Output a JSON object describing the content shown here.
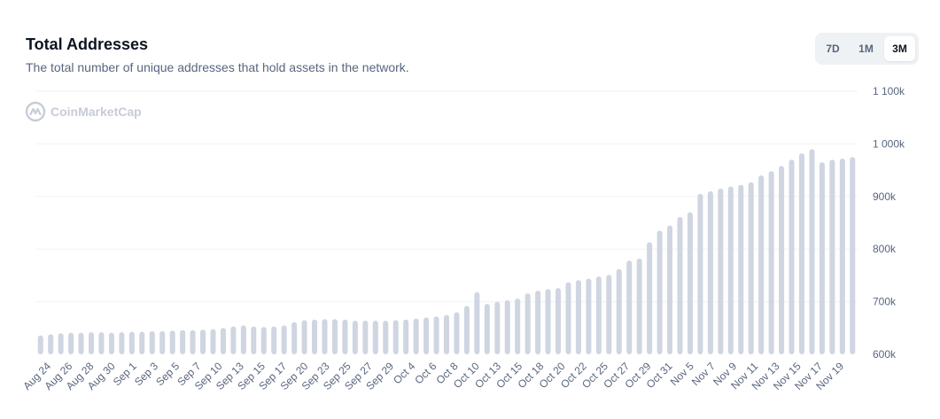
{
  "header": {
    "title": "Total Addresses",
    "subtitle": "The total number of unique addresses that hold assets in the network."
  },
  "range_buttons": [
    {
      "label": "7D",
      "active": false
    },
    {
      "label": "1M",
      "active": false
    },
    {
      "label": "3M",
      "active": true
    }
  ],
  "watermark": {
    "text": "CoinMarketCap"
  },
  "colors": {
    "bar": "#cfd5e1",
    "grid": "#eff2f5",
    "tick": "#58667e",
    "watermark": "#c7ccd6"
  },
  "chart_data": {
    "type": "bar",
    "title": "Total Addresses",
    "xlabel": "",
    "ylabel": "",
    "ylim": [
      600000,
      1100000
    ],
    "y_ticks": [
      {
        "value": 1100000,
        "label": "1 100k"
      },
      {
        "value": 1000000,
        "label": "1 000k"
      },
      {
        "value": 900000,
        "label": "900k"
      },
      {
        "value": 800000,
        "label": "800k"
      },
      {
        "value": 700000,
        "label": "700k"
      },
      {
        "value": 600000,
        "label": "600k"
      }
    ],
    "x_tick_labels": [
      "Aug 24",
      "Aug 26",
      "Aug 28",
      "Aug 30",
      "Sep 1",
      "Sep 3",
      "Sep 5",
      "Sep 7",
      "Sep 10",
      "Sep 13",
      "Sep 15",
      "Sep 17",
      "Sep 20",
      "Sep 23",
      "Sep 25",
      "Sep 27",
      "Sep 29",
      "Oct 4",
      "Oct 6",
      "Oct 8",
      "Oct 10",
      "Oct 13",
      "Oct 15",
      "Oct 18",
      "Oct 20",
      "Oct 22",
      "Oct 25",
      "Oct 27",
      "Oct 29",
      "Oct 31",
      "Nov 5",
      "Nov 7",
      "Nov 9",
      "Nov 11",
      "Nov 13",
      "Nov 15",
      "Nov 17",
      "Nov 19"
    ],
    "values": [
      636000,
      638000,
      640000,
      641000,
      641000,
      642000,
      642000,
      641000,
      642000,
      643000,
      643000,
      644000,
      644000,
      645000,
      646000,
      646000,
      647000,
      648000,
      650000,
      653000,
      655000,
      653000,
      652000,
      653000,
      655000,
      661000,
      665000,
      666000,
      667000,
      667000,
      666000,
      664000,
      664000,
      664000,
      664000,
      665000,
      666000,
      668000,
      670000,
      672000,
      675000,
      680000,
      692000,
      718000,
      696000,
      700000,
      703000,
      706000,
      716000,
      721000,
      724000,
      726000,
      737000,
      741000,
      744000,
      748000,
      751000,
      762000,
      778000,
      782000,
      813000,
      835000,
      845000,
      861000,
      870000,
      905000,
      910000,
      915000,
      919000,
      922000,
      927000,
      940000,
      948000,
      958000,
      970000,
      982000,
      990000,
      965000,
      970000,
      972000,
      975000
    ]
  }
}
